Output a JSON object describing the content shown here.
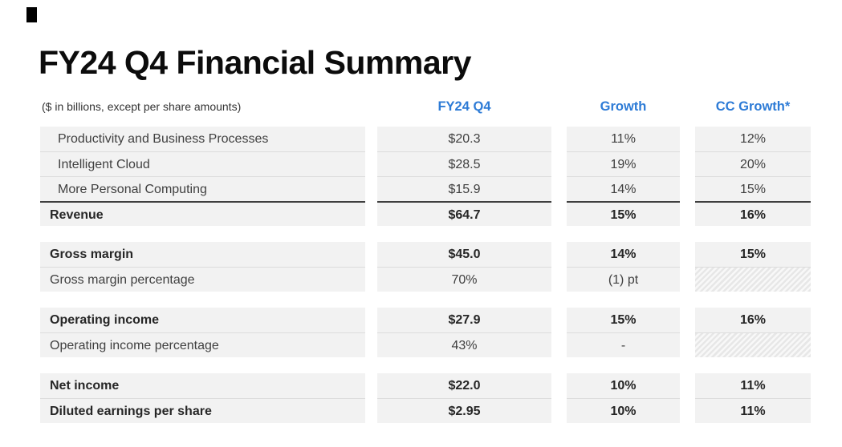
{
  "page": {
    "title": "FY24 Q4 Financial Summary"
  },
  "colors": {
    "accent_blue": "#2D7BD6",
    "row_background": "#F2F2F2",
    "total_rule": "#3F3F3F",
    "row_separator": "#DCDCDC",
    "title_text": "#0C0C0C",
    "body_text": "#404040"
  },
  "table": {
    "note": "($ in billions, except per share amounts)",
    "columns": [
      "FY24 Q4",
      "Growth",
      "CC Growth*"
    ],
    "rows": [
      {
        "label": "Productivity and Business Processes",
        "fy24q4": "$20.3",
        "growth": "11%",
        "cc_growth": "12%"
      },
      {
        "label": "Intelligent Cloud",
        "fy24q4": "$28.5",
        "growth": "19%",
        "cc_growth": "20%"
      },
      {
        "label": "More Personal Computing",
        "fy24q4": "$15.9",
        "growth": "14%",
        "cc_growth": "15%"
      },
      {
        "label": "Revenue",
        "fy24q4": "$64.7",
        "growth": "15%",
        "cc_growth": "16%"
      },
      {
        "label": "Gross margin",
        "fy24q4": "$45.0",
        "growth": "14%",
        "cc_growth": "15%"
      },
      {
        "label": "Gross margin percentage",
        "fy24q4": "70%",
        "growth": "(1) pt",
        "cc_growth": ""
      },
      {
        "label": "Operating income",
        "fy24q4": "$27.9",
        "growth": "15%",
        "cc_growth": "16%"
      },
      {
        "label": "Operating income percentage",
        "fy24q4": "43%",
        "growth": "-",
        "cc_growth": ""
      },
      {
        "label": "Net income",
        "fy24q4": "$22.0",
        "growth": "10%",
        "cc_growth": "11%"
      },
      {
        "label": "Diluted earnings per share",
        "fy24q4": "$2.95",
        "growth": "10%",
        "cc_growth": "11%"
      }
    ]
  }
}
